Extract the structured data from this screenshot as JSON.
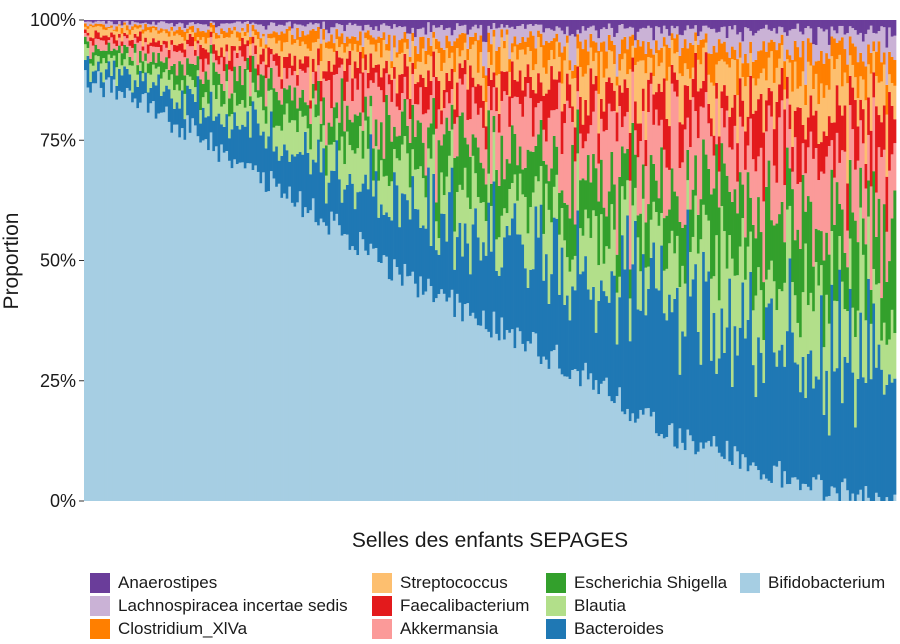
{
  "chart_data": {
    "type": "bar",
    "stacked": true,
    "title": "",
    "xlabel": "Selles des enfants SEPAGES",
    "ylabel": "Proportion",
    "ylim": [
      0,
      1
    ],
    "y_ticks": [
      "0%",
      "25%",
      "50%",
      "75%",
      "100%"
    ],
    "x_ticks_shown": false,
    "grid": false,
    "legend_position": "bottom",
    "sample_count": 310,
    "sort_order": "descending Bifidobacterium",
    "series": [
      {
        "name": "Anaerostipes",
        "color": "#6a3d9a"
      },
      {
        "name": "Lachnospiracea incertae sedis",
        "color": "#cab2d6"
      },
      {
        "name": "Clostridium_XlVa",
        "color": "#ff7f00"
      },
      {
        "name": "Streptococcus",
        "color": "#fdbf6f"
      },
      {
        "name": "Faecalibacterium",
        "color": "#e31a1c"
      },
      {
        "name": "Akkermansia",
        "color": "#fb9a99"
      },
      {
        "name": "Escherichia Shigella",
        "color": "#33a02c"
      },
      {
        "name": "Blautia",
        "color": "#b2df8a"
      },
      {
        "name": "Bacteroides",
        "color": "#1f78b4"
      },
      {
        "name": "Bifidobacterium",
        "color": "#a6cee3"
      }
    ],
    "approx_bifidobacterium_by_rank": [
      [
        0.0,
        0.88
      ],
      [
        0.1,
        0.8
      ],
      [
        0.2,
        0.7
      ],
      [
        0.3,
        0.58
      ],
      [
        0.4,
        0.46
      ],
      [
        0.5,
        0.37
      ],
      [
        0.6,
        0.28
      ],
      [
        0.7,
        0.16
      ],
      [
        0.8,
        0.09
      ],
      [
        0.9,
        0.03
      ],
      [
        1.0,
        0.0
      ]
    ]
  }
}
